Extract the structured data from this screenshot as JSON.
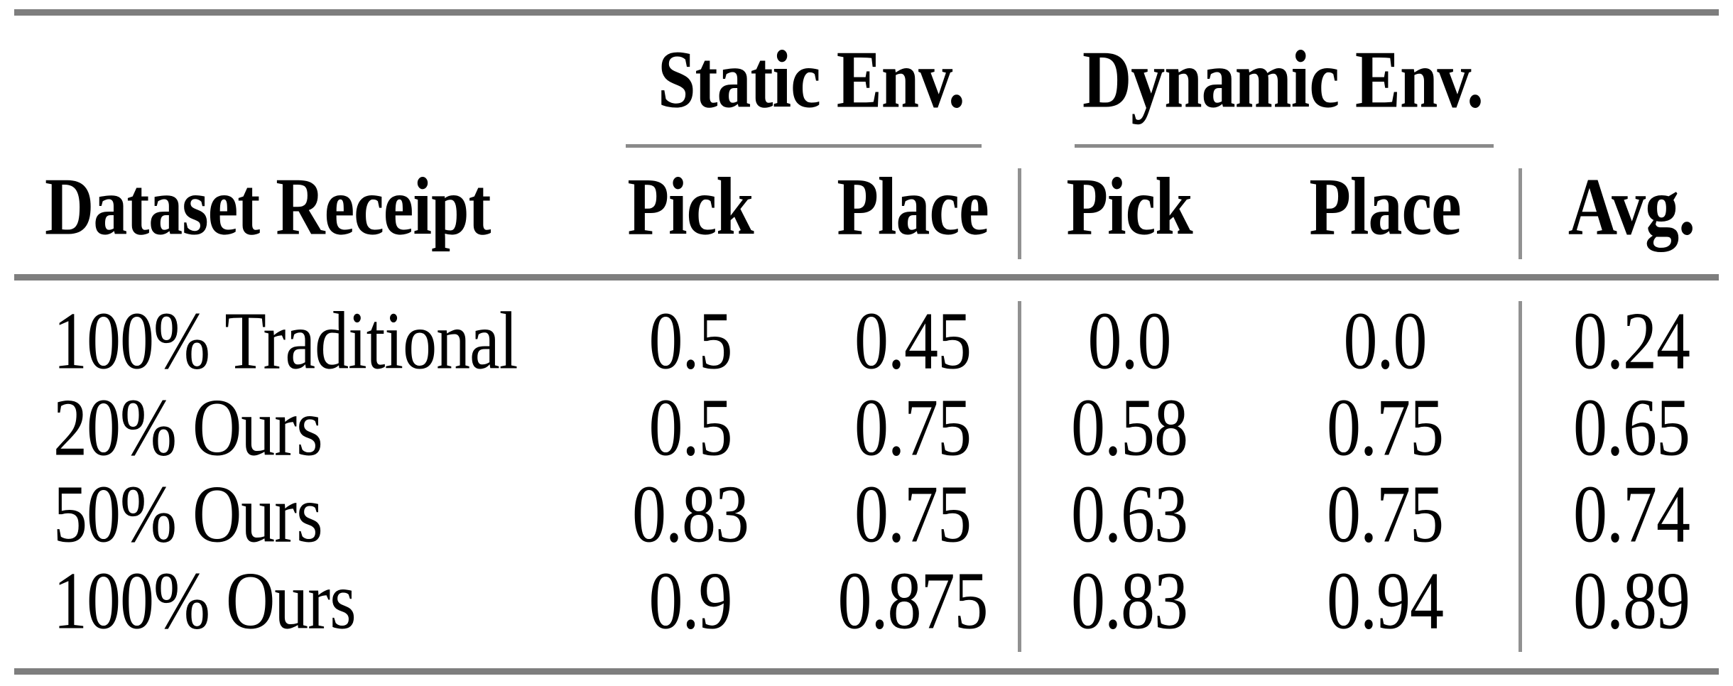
{
  "header": {
    "row_label": "Dataset Receipt",
    "static": {
      "title": "Static Env.",
      "cols": [
        "Pick",
        "Place"
      ]
    },
    "dynamic": {
      "title": "Dynamic Env.",
      "cols": [
        "Pick",
        "Place"
      ]
    },
    "avg_label": "Avg."
  },
  "rows": [
    {
      "label": "100% Traditional",
      "values": [
        "0.5",
        "0.45",
        "0.0",
        "0.0",
        "0.24"
      ]
    },
    {
      "label": "20% Ours",
      "values": [
        "0.5",
        "0.75",
        "0.58",
        "0.75",
        "0.65"
      ]
    },
    {
      "label": "50% Ours",
      "values": [
        "0.83",
        "0.75",
        "0.63",
        "0.75",
        "0.74"
      ]
    },
    {
      "label": "100% Ours",
      "values": [
        "0.9",
        "0.875",
        "0.83",
        "0.94",
        "0.89"
      ]
    }
  ],
  "colors": {
    "rule_thick": "#7e7e7e",
    "rule_thin": "#8a8a8a",
    "separator": "#919191",
    "text": "#000000",
    "background": "#ffffff"
  }
}
